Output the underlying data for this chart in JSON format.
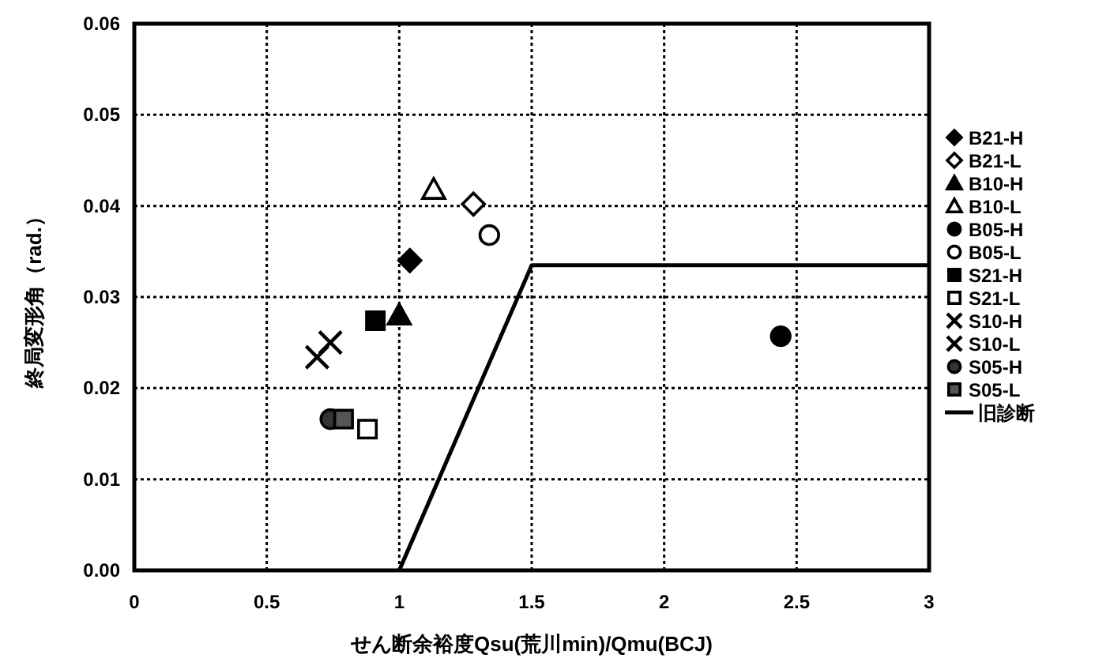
{
  "chart_data": {
    "type": "scatter",
    "xlabel": "せん断余裕度Qsu(荒川min)/Qmu(BCJ)",
    "ylabel": "終局変形角（rad.）",
    "xlim": [
      0,
      3
    ],
    "xticks": [
      0,
      0.5,
      1,
      1.5,
      2,
      2.5,
      3
    ],
    "ylim": [
      0,
      0.06
    ],
    "yticks": [
      {
        "value": 0,
        "label": "0.00"
      },
      {
        "value": 0.01,
        "label": "0.01"
      },
      {
        "value": 0.02,
        "label": "0.02"
      },
      {
        "value": 0.03,
        "label": "0.03"
      },
      {
        "value": 0.04,
        "label": "0.04"
      },
      {
        "value": 0.05,
        "label": "0.05"
      },
      {
        "value": 0.06,
        "label": "0.06"
      }
    ],
    "grid": true,
    "legend": "right",
    "series": [
      {
        "name": "B21-H",
        "color": "#000000",
        "marker": "diamond",
        "x": [
          1.04
        ],
        "values": [
          0.034
        ]
      },
      {
        "name": "B21-L",
        "color": "#ffffff",
        "marker": "diamond",
        "x": [
          1.28
        ],
        "values": [
          0.0402
        ]
      },
      {
        "name": "B10-H",
        "color": "#000000",
        "marker": "triangle",
        "x": [
          1.0
        ],
        "values": [
          0.028
        ]
      },
      {
        "name": "B10-L",
        "color": "#ffffff",
        "marker": "triangle",
        "x": [
          1.13
        ],
        "values": [
          0.0418
        ]
      },
      {
        "name": "B05-H",
        "color": "#000000",
        "marker": "circle",
        "x": [
          2.44
        ],
        "values": [
          0.0257
        ]
      },
      {
        "name": "B05-L",
        "color": "#ffffff",
        "marker": "circle",
        "x": [
          1.34
        ],
        "values": [
          0.0368
        ]
      },
      {
        "name": "S21-H",
        "color": "#000000",
        "marker": "square",
        "x": [
          0.91
        ],
        "values": [
          0.0274
        ]
      },
      {
        "name": "S21-L",
        "color": "#ffffff",
        "marker": "square",
        "x": [
          0.88
        ],
        "values": [
          0.0155
        ]
      },
      {
        "name": "S10-H",
        "color": "#000000",
        "marker": "cross",
        "x": [
          0.69
        ],
        "values": [
          0.0234
        ]
      },
      {
        "name": "S10-L",
        "color": "#000000",
        "marker": "cross",
        "x": [
          0.74
        ],
        "values": [
          0.025
        ]
      },
      {
        "name": "S05-H",
        "color": "#333333",
        "marker": "circle",
        "x": [
          0.74
        ],
        "values": [
          0.0166
        ]
      },
      {
        "name": "S05-L",
        "color": "#555555",
        "marker": "square",
        "x": [
          0.79
        ],
        "values": [
          0.0166
        ]
      },
      {
        "name": "旧診断",
        "type": "line",
        "color": "#000000",
        "marker": "none",
        "line_style": "solid",
        "x": [
          1.0,
          1.5,
          3.0
        ],
        "values": [
          0,
          0.0335,
          0.0335
        ]
      }
    ]
  }
}
